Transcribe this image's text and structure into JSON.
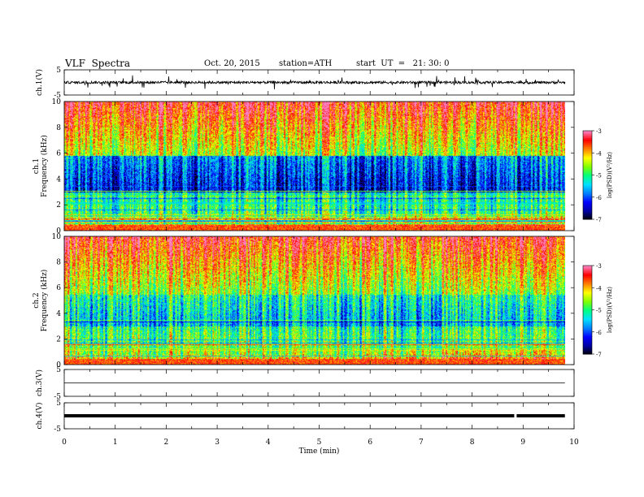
{
  "header": {
    "title": "VLF  Spectra",
    "date": "Oct. 20, 2015",
    "station": "station=ATH",
    "start": "start  UT  =   21: 30: 0"
  },
  "chart_data": [
    {
      "type": "line",
      "panel": "ch1-waveform",
      "ylabel": "ch.1(V)",
      "ylim": [
        -5,
        5
      ],
      "y_ticks": [
        "5",
        "-5"
      ],
      "x": "time (min)",
      "series": [
        {
          "values_description": "",
          "approx_level": 0,
          "noise_amplitude": 1
        }
      ],
      "color": "#000000"
    },
    {
      "type": "heatmap",
      "panel": "ch1-spectrogram",
      "ylabel": "ch.1\nFrequency  (kHz)",
      "ylim": [
        0,
        10
      ],
      "y_ticks": [
        "0",
        "2",
        "4",
        "6",
        "8",
        "10"
      ],
      "colorbar": {
        "label": "log(PSD)(V²/Hz)",
        "range": [
          -7,
          -3
        ],
        "ticks": [
          "-3",
          "-4",
          "-5",
          "-6",
          "-7"
        ]
      }
    },
    {
      "type": "heatmap",
      "panel": "ch2-spectrogram",
      "ylabel": "ch.2\nFrequency  (kHz)",
      "ylim": [
        0,
        10
      ],
      "y_ticks": [
        "0",
        "2",
        "4",
        "6",
        "8",
        "10"
      ],
      "colorbar": {
        "label": "log(PSD)(V²/Hz)",
        "range": [
          -7,
          -3
        ],
        "ticks": [
          "-3",
          "-4",
          "-5",
          "-6",
          "-7"
        ]
      }
    },
    {
      "type": "line",
      "panel": "ch3-waveform",
      "ylabel": "ch.3(V)",
      "ylim": [
        -5,
        5
      ],
      "y_ticks": [
        "5",
        "-5"
      ],
      "approx_level": 0
    },
    {
      "type": "line",
      "panel": "ch4-waveform",
      "ylabel": "ch.4(V)",
      "ylim": [
        -5,
        5
      ],
      "y_ticks": [
        "5",
        "-5"
      ],
      "approx_level": 0,
      "gap_at_min": 8.85
    }
  ],
  "xaxis": {
    "label": "Time  (min)",
    "xlim": [
      0,
      10
    ],
    "ticks": [
      "0",
      "1",
      "2",
      "3",
      "4",
      "5",
      "6",
      "7",
      "8",
      "9",
      "10"
    ],
    "data_end_min": 9.82
  },
  "colors": {
    "colormap": [
      "#000000",
      "#0000a0",
      "#0000ff",
      "#0080ff",
      "#00e0ff",
      "#00ff80",
      "#80ff00",
      "#ffff00",
      "#ff8000",
      "#ff0000",
      "#ff80c0",
      "#ffffff"
    ]
  }
}
